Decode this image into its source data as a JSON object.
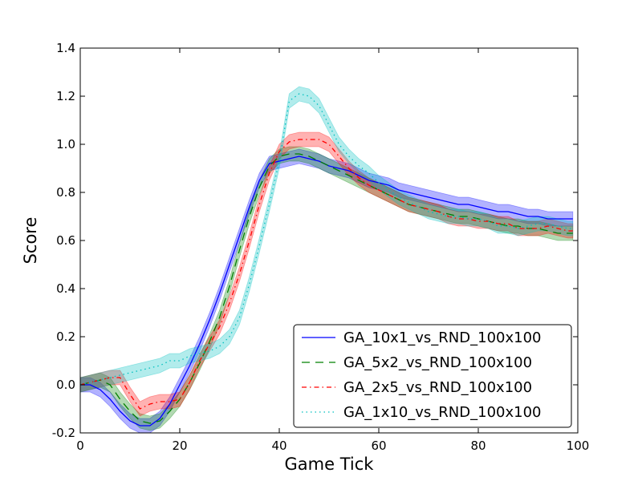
{
  "chart_data": {
    "type": "line",
    "title": "",
    "xlabel": "Game Tick",
    "ylabel": "Score",
    "xlim": [
      0,
      100
    ],
    "ylim": [
      -0.2,
      1.4
    ],
    "xticks": [
      0,
      20,
      40,
      60,
      80,
      100
    ],
    "yticks": [
      -0.2,
      0.0,
      0.2,
      0.4,
      0.6,
      0.8,
      1.0,
      1.2,
      1.4
    ],
    "grid": false,
    "legend_position": "lower-right",
    "series": [
      {
        "name": "GA_10x1_vs_RND_100x100",
        "color": "#0000ff",
        "dash": "solid",
        "band": 0.03,
        "x": [
          0,
          2,
          4,
          6,
          8,
          10,
          12,
          14,
          16,
          18,
          20,
          22,
          24,
          26,
          28,
          30,
          32,
          34,
          36,
          38,
          40,
          42,
          44,
          46,
          48,
          50,
          52,
          54,
          56,
          58,
          60,
          62,
          64,
          66,
          68,
          70,
          72,
          74,
          76,
          78,
          80,
          82,
          84,
          86,
          88,
          90,
          92,
          94,
          96,
          98,
          99
        ],
        "y": [
          0.0,
          0.0,
          -0.02,
          -0.06,
          -0.11,
          -0.15,
          -0.17,
          -0.17,
          -0.14,
          -0.08,
          0.0,
          0.08,
          0.17,
          0.27,
          0.38,
          0.5,
          0.62,
          0.74,
          0.85,
          0.92,
          0.93,
          0.94,
          0.95,
          0.94,
          0.93,
          0.91,
          0.9,
          0.89,
          0.87,
          0.85,
          0.84,
          0.83,
          0.81,
          0.8,
          0.79,
          0.78,
          0.77,
          0.76,
          0.75,
          0.75,
          0.74,
          0.73,
          0.72,
          0.72,
          0.71,
          0.7,
          0.7,
          0.69,
          0.69,
          0.69,
          0.69
        ]
      },
      {
        "name": "GA_5x2_vs_RND_100x100",
        "color": "#008000",
        "dash": "10,7",
        "band": 0.03,
        "x": [
          0,
          2,
          4,
          6,
          8,
          10,
          12,
          14,
          16,
          18,
          20,
          22,
          24,
          26,
          28,
          30,
          32,
          34,
          36,
          38,
          40,
          42,
          44,
          46,
          48,
          50,
          52,
          54,
          56,
          58,
          60,
          62,
          64,
          66,
          68,
          70,
          72,
          74,
          76,
          78,
          80,
          82,
          84,
          86,
          88,
          90,
          92,
          94,
          96,
          98,
          99
        ],
        "y": [
          0.0,
          0.01,
          0.02,
          0.0,
          -0.06,
          -0.11,
          -0.15,
          -0.16,
          -0.15,
          -0.11,
          -0.06,
          0.01,
          0.09,
          0.18,
          0.28,
          0.41,
          0.56,
          0.7,
          0.82,
          0.91,
          0.95,
          0.96,
          0.96,
          0.95,
          0.93,
          0.91,
          0.89,
          0.87,
          0.85,
          0.83,
          0.81,
          0.79,
          0.77,
          0.75,
          0.74,
          0.73,
          0.72,
          0.71,
          0.7,
          0.7,
          0.69,
          0.68,
          0.67,
          0.66,
          0.66,
          0.65,
          0.65,
          0.64,
          0.63,
          0.63,
          0.63
        ]
      },
      {
        "name": "GA_2x5_vs_RND_100x100",
        "color": "#ff0000",
        "dash": "6,4,1.5,4",
        "band": 0.03,
        "x": [
          0,
          2,
          4,
          6,
          8,
          10,
          12,
          14,
          16,
          18,
          20,
          22,
          24,
          26,
          28,
          30,
          32,
          34,
          36,
          38,
          40,
          42,
          44,
          46,
          48,
          50,
          52,
          54,
          56,
          58,
          60,
          62,
          64,
          66,
          68,
          70,
          72,
          74,
          76,
          78,
          80,
          82,
          84,
          86,
          88,
          90,
          92,
          94,
          96,
          98,
          99
        ],
        "y": [
          0.0,
          0.01,
          0.02,
          0.03,
          0.03,
          -0.04,
          -0.1,
          -0.08,
          -0.07,
          -0.07,
          -0.06,
          0.01,
          0.1,
          0.17,
          0.24,
          0.34,
          0.46,
          0.6,
          0.75,
          0.88,
          0.97,
          1.01,
          1.02,
          1.02,
          1.02,
          1.0,
          0.95,
          0.9,
          0.86,
          0.83,
          0.81,
          0.79,
          0.77,
          0.75,
          0.74,
          0.73,
          0.72,
          0.7,
          0.69,
          0.69,
          0.68,
          0.68,
          0.67,
          0.67,
          0.65,
          0.65,
          0.65,
          0.66,
          0.65,
          0.64,
          0.64
        ]
      },
      {
        "name": "GA_1x10_vs_RND_100x100",
        "color": "#00bfbf",
        "dash": "1.5,4",
        "band": 0.03,
        "x": [
          0,
          2,
          4,
          6,
          8,
          10,
          12,
          14,
          16,
          18,
          20,
          22,
          24,
          26,
          28,
          30,
          32,
          34,
          36,
          38,
          40,
          42,
          44,
          46,
          48,
          50,
          52,
          54,
          56,
          58,
          60,
          62,
          64,
          66,
          68,
          70,
          72,
          74,
          76,
          78,
          80,
          82,
          84,
          86,
          88,
          90,
          92,
          94,
          96,
          98,
          99
        ],
        "y": [
          0.0,
          0.01,
          0.02,
          0.03,
          0.04,
          0.05,
          0.06,
          0.07,
          0.08,
          0.1,
          0.1,
          0.12,
          0.13,
          0.14,
          0.16,
          0.2,
          0.28,
          0.42,
          0.58,
          0.75,
          0.93,
          1.18,
          1.21,
          1.2,
          1.16,
          1.08,
          1.0,
          0.95,
          0.91,
          0.88,
          0.84,
          0.81,
          0.78,
          0.76,
          0.74,
          0.72,
          0.71,
          0.7,
          0.7,
          0.69,
          0.69,
          0.68,
          0.66,
          0.66,
          0.65,
          0.66,
          0.67,
          0.67,
          0.66,
          0.65,
          0.65
        ]
      }
    ]
  }
}
